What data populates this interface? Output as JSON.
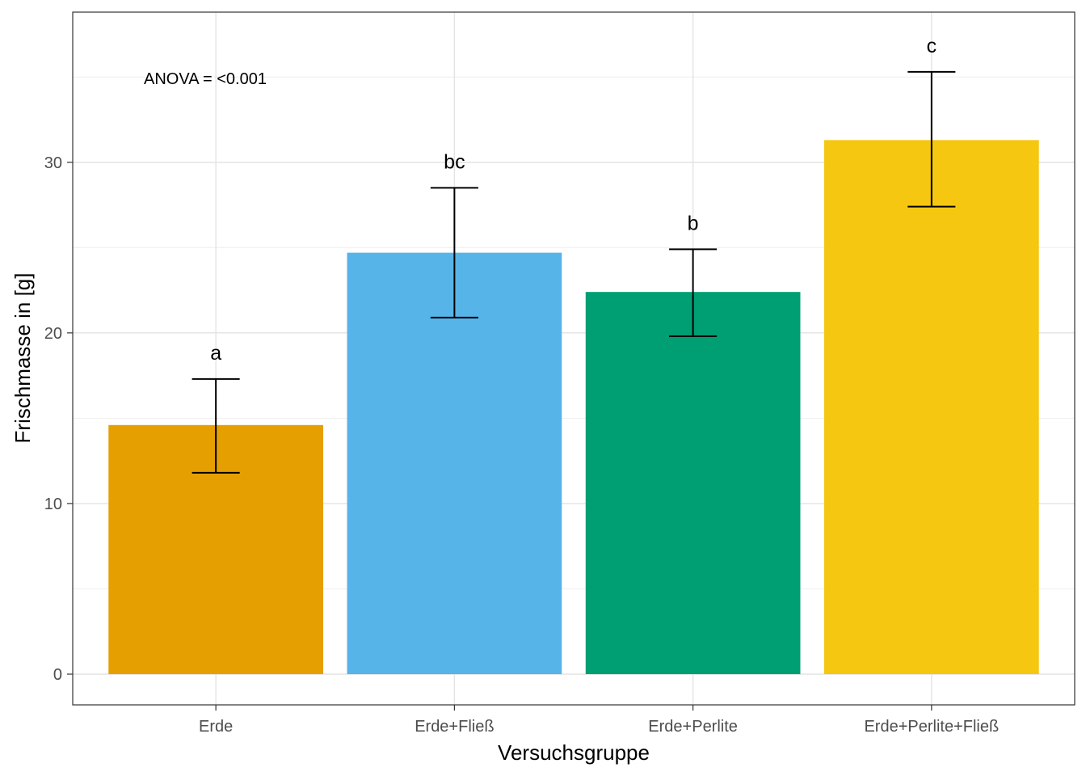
{
  "chart_data": {
    "type": "bar",
    "categories": [
      "Erde",
      "Erde+Fließ",
      "Erde+Perlite",
      "Erde+Perlite+Fließ"
    ],
    "values": [
      14.6,
      24.7,
      22.4,
      31.3
    ],
    "error_low": [
      11.8,
      20.9,
      19.8,
      27.4
    ],
    "error_high": [
      17.3,
      28.5,
      24.9,
      35.3
    ],
    "significance_letters": [
      "a",
      "bc",
      "b",
      "c"
    ],
    "colors": [
      "#E69F00",
      "#56B4E9",
      "#009E73",
      "#F5C710"
    ],
    "annotation": "ANOVA = <0.001",
    "xlabel": "Versuchsgruppe",
    "ylabel": "Frischmasse in [g]",
    "ylim": [
      -1.8,
      38.8
    ],
    "yticks": [
      0,
      10,
      20,
      30
    ],
    "grid": true
  }
}
